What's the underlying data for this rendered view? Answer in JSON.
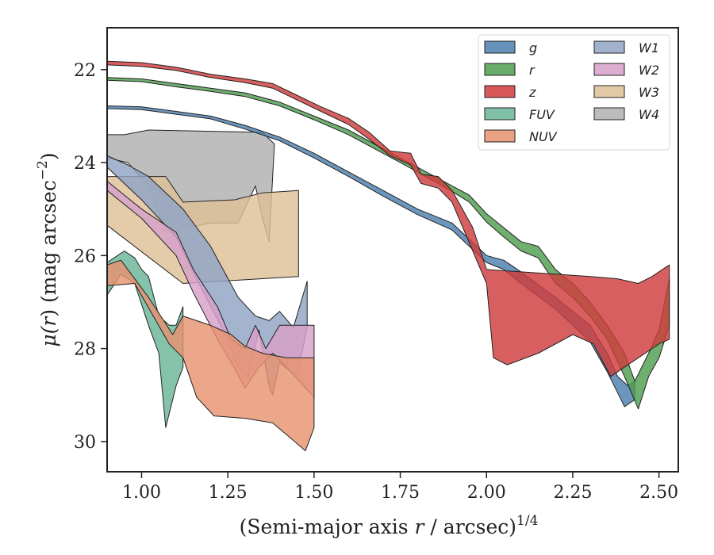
{
  "chart_data": {
    "type": "area",
    "xlabel_main": "(Semi-major axis ",
    "xlabel_var": "r",
    "xlabel_unit": " / arcsec)",
    "xlabel_exp": "1/4",
    "ylabel_mu": "μ(",
    "ylabel_r": "r",
    "ylabel_rest": ") (mag arcsec",
    "ylabel_exp": "−2",
    "ylabel_close": ")",
    "xlim": [
      0.9,
      2.556
    ],
    "ylim": [
      30.65,
      21.1
    ],
    "y_inverted": true,
    "x_ticks": [
      {
        "v": 1.0,
        "label": "1.00"
      },
      {
        "v": 1.25,
        "label": "1.25"
      },
      {
        "v": 1.5,
        "label": "1.50"
      },
      {
        "v": 1.75,
        "label": "1.75"
      },
      {
        "v": 2.0,
        "label": "2.00"
      },
      {
        "v": 2.25,
        "label": "2.25"
      },
      {
        "v": 2.5,
        "label": "2.50"
      }
    ],
    "y_ticks": [
      {
        "v": 22,
        "label": "22"
      },
      {
        "v": 24,
        "label": "24"
      },
      {
        "v": 26,
        "label": "26"
      },
      {
        "v": 28,
        "label": "28"
      },
      {
        "v": 30,
        "label": "30"
      }
    ],
    "grid": false,
    "legend_position": "top-right",
    "series": [
      {
        "name": "W4",
        "color": "#b0b0b0",
        "upper": [
          [
            0.9,
            23.4
          ],
          [
            0.95,
            23.4
          ],
          [
            1.02,
            23.3
          ],
          [
            1.35,
            23.35
          ],
          [
            1.385,
            23.6
          ]
        ],
        "lower": [
          [
            0.9,
            23.9
          ],
          [
            0.96,
            24.0
          ],
          [
            1.02,
            24.5
          ],
          [
            1.07,
            25.5
          ],
          [
            1.2,
            25.3
          ],
          [
            1.28,
            25.3
          ],
          [
            1.33,
            24.5
          ],
          [
            1.35,
            25.2
          ],
          [
            1.37,
            25.7
          ]
        ]
      },
      {
        "name": "W3",
        "color": "#dec197",
        "upper": [
          [
            0.9,
            24.3
          ],
          [
            1.07,
            24.3
          ],
          [
            1.12,
            24.85
          ],
          [
            1.27,
            24.8
          ],
          [
            1.35,
            24.65
          ],
          [
            1.455,
            24.6
          ]
        ],
        "lower": [
          [
            0.9,
            25.35
          ],
          [
            1.12,
            26.6
          ],
          [
            1.455,
            26.45
          ]
        ]
      },
      {
        "name": "W1",
        "color": "#90a3c5",
        "upper": [
          [
            0.9,
            23.85
          ],
          [
            0.96,
            24.05
          ],
          [
            1.02,
            24.3
          ],
          [
            1.12,
            25.0
          ],
          [
            1.2,
            25.8
          ],
          [
            1.28,
            26.9
          ],
          [
            1.33,
            27.3
          ],
          [
            1.37,
            27.4
          ],
          [
            1.4,
            27.2
          ],
          [
            1.44,
            27.55
          ],
          [
            1.48,
            26.55
          ]
        ],
        "lower": [
          [
            0.9,
            24.1
          ],
          [
            1.0,
            24.8
          ],
          [
            1.1,
            25.6
          ],
          [
            1.18,
            26.8
          ],
          [
            1.25,
            27.8
          ],
          [
            1.28,
            28.4
          ],
          [
            1.31,
            28.6
          ],
          [
            1.34,
            27.6
          ],
          [
            1.37,
            28.8
          ],
          [
            1.38,
            29.0
          ],
          [
            1.4,
            28.3
          ],
          [
            1.45,
            28.6
          ],
          [
            1.48,
            27.55
          ]
        ]
      },
      {
        "name": "W2",
        "color": "#d7a0c9",
        "upper": [
          [
            0.9,
            24.4
          ],
          [
            1.0,
            25.0
          ],
          [
            1.1,
            25.5
          ],
          [
            1.15,
            26.3
          ],
          [
            1.22,
            27.1
          ],
          [
            1.26,
            27.8
          ],
          [
            1.3,
            28.0
          ],
          [
            1.33,
            27.5
          ],
          [
            1.36,
            28.0
          ],
          [
            1.4,
            27.5
          ],
          [
            1.5,
            27.5
          ]
        ],
        "lower": [
          [
            0.9,
            24.6
          ],
          [
            1.0,
            25.2
          ],
          [
            1.1,
            26.0
          ],
          [
            1.15,
            26.8
          ],
          [
            1.22,
            27.8
          ],
          [
            1.26,
            28.3
          ],
          [
            1.3,
            28.85
          ],
          [
            1.34,
            28.4
          ],
          [
            1.38,
            28.1
          ],
          [
            1.42,
            28.4
          ],
          [
            1.5,
            29.05
          ]
        ]
      },
      {
        "name": "FUV",
        "color": "#6ab597",
        "upper": [
          [
            0.9,
            26.15
          ],
          [
            0.95,
            25.9
          ],
          [
            0.98,
            26.05
          ],
          [
            1.0,
            26.3
          ],
          [
            1.02,
            26.45
          ],
          [
            1.05,
            27.3
          ],
          [
            1.08,
            27.5
          ],
          [
            1.1,
            27.5
          ],
          [
            1.12,
            27.1
          ]
        ],
        "lower": [
          [
            0.9,
            26.85
          ],
          [
            0.94,
            26.4
          ],
          [
            0.98,
            26.6
          ],
          [
            1.02,
            27.5
          ],
          [
            1.05,
            28.1
          ],
          [
            1.07,
            29.7
          ],
          [
            1.1,
            28.8
          ],
          [
            1.12,
            28.4
          ]
        ]
      },
      {
        "name": "NUV",
        "color": "#e8926f",
        "upper": [
          [
            0.9,
            26.2
          ],
          [
            0.94,
            26.1
          ],
          [
            0.97,
            26.4
          ],
          [
            1.02,
            26.9
          ],
          [
            1.06,
            27.35
          ],
          [
            1.09,
            27.7
          ],
          [
            1.12,
            27.3
          ],
          [
            1.2,
            27.5
          ],
          [
            1.26,
            27.7
          ],
          [
            1.3,
            27.95
          ],
          [
            1.35,
            28.1
          ],
          [
            1.42,
            28.2
          ],
          [
            1.5,
            28.2
          ]
        ],
        "lower": [
          [
            0.9,
            26.65
          ],
          [
            0.98,
            26.6
          ],
          [
            1.03,
            27.25
          ],
          [
            1.08,
            27.9
          ],
          [
            1.12,
            28.2
          ],
          [
            1.16,
            29.05
          ],
          [
            1.21,
            29.45
          ],
          [
            1.3,
            29.5
          ],
          [
            1.38,
            29.6
          ],
          [
            1.42,
            29.85
          ],
          [
            1.475,
            30.2
          ],
          [
            1.5,
            29.7
          ]
        ]
      },
      {
        "name": "g",
        "color": "#4c7fad",
        "upper": [
          [
            0.9,
            22.78
          ],
          [
            1.0,
            22.8
          ],
          [
            1.1,
            22.9
          ],
          [
            1.2,
            23.0
          ],
          [
            1.3,
            23.2
          ],
          [
            1.4,
            23.45
          ],
          [
            1.5,
            23.8
          ],
          [
            1.6,
            24.2
          ],
          [
            1.7,
            24.6
          ],
          [
            1.8,
            25.0
          ],
          [
            1.9,
            25.3
          ],
          [
            1.95,
            25.65
          ],
          [
            2.0,
            26.0
          ],
          [
            2.05,
            26.1
          ],
          [
            2.1,
            26.35
          ],
          [
            2.2,
            26.9
          ],
          [
            2.3,
            27.5
          ],
          [
            2.35,
            28.1
          ],
          [
            2.38,
            28.6
          ],
          [
            2.41,
            28.8
          ],
          [
            2.43,
            28.7
          ]
        ],
        "lower": [
          [
            0.9,
            22.84
          ],
          [
            1.0,
            22.86
          ],
          [
            1.1,
            22.96
          ],
          [
            1.2,
            23.06
          ],
          [
            1.3,
            23.28
          ],
          [
            1.4,
            23.53
          ],
          [
            1.5,
            23.9
          ],
          [
            1.6,
            24.3
          ],
          [
            1.7,
            24.72
          ],
          [
            1.8,
            25.12
          ],
          [
            1.9,
            25.45
          ],
          [
            1.95,
            25.8
          ],
          [
            2.0,
            26.15
          ],
          [
            2.05,
            26.3
          ],
          [
            2.1,
            26.6
          ],
          [
            2.2,
            27.15
          ],
          [
            2.3,
            27.85
          ],
          [
            2.35,
            28.5
          ],
          [
            2.38,
            28.95
          ],
          [
            2.4,
            29.25
          ],
          [
            2.43,
            29.1
          ]
        ]
      },
      {
        "name": "r",
        "color": "#4f9d4f",
        "upper": [
          [
            0.9,
            22.17
          ],
          [
            1.0,
            22.2
          ],
          [
            1.1,
            22.3
          ],
          [
            1.2,
            22.4
          ],
          [
            1.3,
            22.5
          ],
          [
            1.4,
            22.7
          ],
          [
            1.5,
            23.0
          ],
          [
            1.6,
            23.3
          ],
          [
            1.7,
            23.7
          ],
          [
            1.8,
            24.1
          ],
          [
            1.9,
            24.5
          ],
          [
            1.95,
            24.7
          ],
          [
            2.0,
            25.1
          ],
          [
            2.05,
            25.4
          ],
          [
            2.1,
            25.7
          ],
          [
            2.15,
            25.8
          ],
          [
            2.2,
            26.3
          ],
          [
            2.25,
            26.6
          ],
          [
            2.3,
            27.0
          ],
          [
            2.35,
            27.5
          ],
          [
            2.4,
            28.1
          ],
          [
            2.43,
            28.7
          ],
          [
            2.47,
            28.1
          ],
          [
            2.5,
            27.6
          ],
          [
            2.53,
            26.5
          ]
        ],
        "lower": [
          [
            0.9,
            22.23
          ],
          [
            1.0,
            22.26
          ],
          [
            1.1,
            22.37
          ],
          [
            1.2,
            22.47
          ],
          [
            1.3,
            22.58
          ],
          [
            1.4,
            22.78
          ],
          [
            1.5,
            23.08
          ],
          [
            1.6,
            23.4
          ],
          [
            1.7,
            23.8
          ],
          [
            1.8,
            24.2
          ],
          [
            1.9,
            24.62
          ],
          [
            1.95,
            24.85
          ],
          [
            2.0,
            25.28
          ],
          [
            2.05,
            25.6
          ],
          [
            2.1,
            25.9
          ],
          [
            2.15,
            26.05
          ],
          [
            2.2,
            26.6
          ],
          [
            2.25,
            26.9
          ],
          [
            2.3,
            27.3
          ],
          [
            2.35,
            27.8
          ],
          [
            2.4,
            28.6
          ],
          [
            2.44,
            29.3
          ],
          [
            2.47,
            28.6
          ],
          [
            2.5,
            28.2
          ],
          [
            2.53,
            27.5
          ]
        ]
      },
      {
        "name": "z",
        "color": "#d03c3c",
        "upper": [
          [
            0.9,
            21.82
          ],
          [
            1.0,
            21.85
          ],
          [
            1.1,
            21.95
          ],
          [
            1.2,
            22.1
          ],
          [
            1.3,
            22.2
          ],
          [
            1.38,
            22.3
          ],
          [
            1.45,
            22.55
          ],
          [
            1.52,
            22.8
          ],
          [
            1.6,
            23.05
          ],
          [
            1.66,
            23.35
          ],
          [
            1.72,
            23.75
          ],
          [
            1.78,
            23.8
          ],
          [
            1.81,
            24.25
          ],
          [
            1.86,
            24.3
          ],
          [
            1.9,
            24.6
          ],
          [
            1.96,
            25.4
          ],
          [
            2.0,
            26.3
          ],
          [
            2.1,
            26.35
          ],
          [
            2.2,
            26.4
          ],
          [
            2.3,
            26.45
          ],
          [
            2.38,
            26.5
          ],
          [
            2.44,
            26.6
          ],
          [
            2.48,
            26.45
          ],
          [
            2.53,
            26.2
          ]
        ],
        "lower": [
          [
            0.9,
            21.9
          ],
          [
            1.0,
            21.93
          ],
          [
            1.1,
            22.02
          ],
          [
            1.2,
            22.17
          ],
          [
            1.3,
            22.28
          ],
          [
            1.38,
            22.4
          ],
          [
            1.45,
            22.65
          ],
          [
            1.52,
            22.9
          ],
          [
            1.6,
            23.18
          ],
          [
            1.66,
            23.5
          ],
          [
            1.72,
            23.85
          ],
          [
            1.78,
            24.05
          ],
          [
            1.81,
            24.45
          ],
          [
            1.86,
            24.55
          ],
          [
            1.9,
            24.85
          ],
          [
            1.96,
            25.9
          ],
          [
            2.0,
            26.6
          ],
          [
            2.02,
            28.2
          ],
          [
            2.06,
            28.35
          ],
          [
            2.15,
            28.1
          ],
          [
            2.25,
            27.7
          ],
          [
            2.31,
            27.9
          ],
          [
            2.36,
            28.6
          ],
          [
            2.4,
            28.4
          ],
          [
            2.46,
            28.1
          ],
          [
            2.5,
            27.9
          ],
          [
            2.53,
            27.8
          ]
        ]
      }
    ],
    "legend": [
      {
        "name": "g",
        "color": "#4c7fad",
        "col": 0,
        "row": 0
      },
      {
        "name": "r",
        "color": "#4f9d4f",
        "col": 0,
        "row": 1
      },
      {
        "name": "z",
        "color": "#d03c3c",
        "col": 0,
        "row": 2
      },
      {
        "name": "FUV",
        "color": "#6ab597",
        "col": 0,
        "row": 3
      },
      {
        "name": "NUV",
        "color": "#e8926f",
        "col": 0,
        "row": 4
      },
      {
        "name": "W1",
        "color": "#90a3c5",
        "col": 1,
        "row": 0
      },
      {
        "name": "W2",
        "color": "#d7a0c9",
        "col": 1,
        "row": 1
      },
      {
        "name": "W3",
        "color": "#dec197",
        "col": 1,
        "row": 2
      },
      {
        "name": "W4",
        "color": "#b0b0b0",
        "col": 1,
        "row": 3
      }
    ]
  }
}
